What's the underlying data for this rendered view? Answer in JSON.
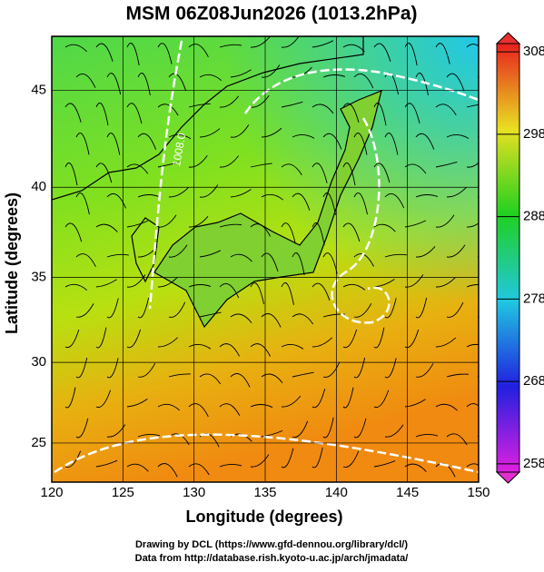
{
  "title": "MSM 06Z08Jun2026 (1013.2hPa)",
  "x_axis": {
    "label": "Longitude (degrees)",
    "lim": [
      120,
      150
    ],
    "ticks": [
      120,
      125,
      130,
      135,
      140,
      145,
      150
    ]
  },
  "y_axis": {
    "label": "Latitude  (degrees)",
    "lim": [
      22.5,
      47.6
    ],
    "ticks": [
      25,
      30,
      35,
      40,
      45
    ]
  },
  "colorbar": {
    "lim": [
      257,
      309
    ],
    "ticks": [
      258,
      268,
      278,
      288,
      298,
      308
    ]
  },
  "contour_labels": [
    "1008.0"
  ],
  "credits": [
    "Drawing by DCL (https://www.gfd-dennou.org/library/dcl/)",
    "Data from http://database.rish.kyoto-u.ac.jp/arch/jmadata/"
  ]
}
